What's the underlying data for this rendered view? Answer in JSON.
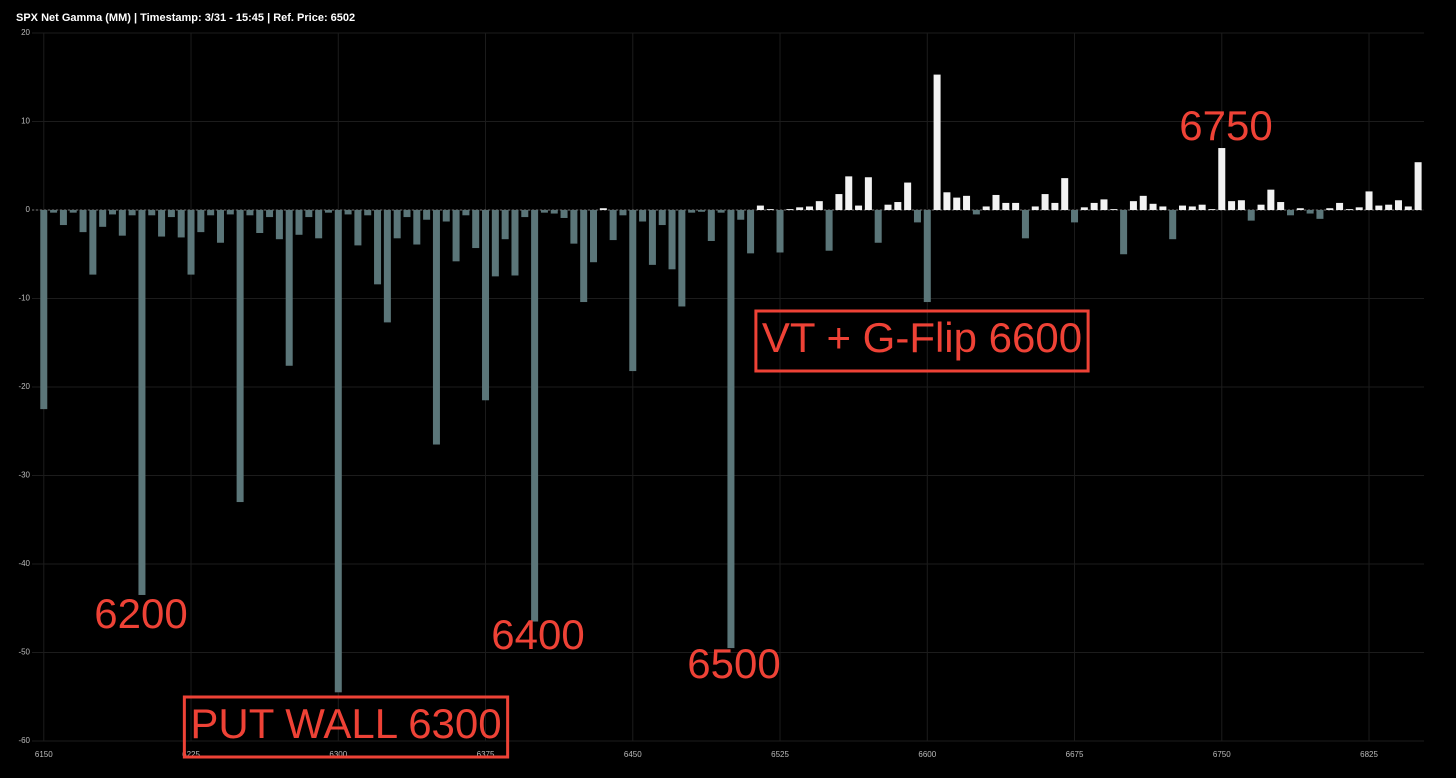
{
  "chart_data": {
    "type": "bar",
    "title": "SPX Net Gamma (MM) | Timestamp: 3/31 - 15:45  | Ref. Price: 6502",
    "x": [
      6150,
      6155,
      6160,
      6165,
      6170,
      6175,
      6180,
      6185,
      6190,
      6195,
      6200,
      6205,
      6210,
      6215,
      6220,
      6225,
      6230,
      6235,
      6240,
      6245,
      6250,
      6255,
      6260,
      6265,
      6270,
      6275,
      6280,
      6285,
      6290,
      6295,
      6300,
      6305,
      6310,
      6315,
      6320,
      6325,
      6330,
      6335,
      6340,
      6345,
      6350,
      6355,
      6360,
      6365,
      6370,
      6375,
      6380,
      6385,
      6390,
      6395,
      6400,
      6405,
      6410,
      6415,
      6420,
      6425,
      6430,
      6435,
      6440,
      6445,
      6450,
      6455,
      6460,
      6465,
      6470,
      6475,
      6480,
      6485,
      6490,
      6495,
      6500,
      6505,
      6510,
      6515,
      6520,
      6525,
      6530,
      6535,
      6540,
      6545,
      6550,
      6555,
      6560,
      6565,
      6570,
      6575,
      6580,
      6585,
      6590,
      6595,
      6600,
      6605,
      6610,
      6615,
      6620,
      6625,
      6630,
      6635,
      6640,
      6645,
      6650,
      6655,
      6660,
      6665,
      6670,
      6675,
      6680,
      6685,
      6690,
      6695,
      6700,
      6705,
      6710,
      6715,
      6720,
      6725,
      6730,
      6735,
      6740,
      6745,
      6750,
      6755,
      6760,
      6765,
      6770,
      6775,
      6780,
      6785,
      6790,
      6795,
      6800,
      6805,
      6810,
      6815,
      6820,
      6825,
      6830,
      6835,
      6840,
      6845,
      6850
    ],
    "values": [
      -22.5,
      -0.3,
      -1.7,
      -0.3,
      -2.5,
      -7.3,
      -1.9,
      -0.5,
      -2.9,
      -0.6,
      -43.5,
      -0.6,
      -3.0,
      -0.8,
      -3.1,
      -7.3,
      -2.5,
      -0.6,
      -3.7,
      -0.5,
      -33,
      -0.6,
      -2.6,
      -0.8,
      -3.3,
      -17.6,
      -2.8,
      -0.8,
      -3.2,
      -0.3,
      -54.5,
      -0.5,
      -4.0,
      -0.6,
      -8.4,
      -12.7,
      -3.2,
      -0.8,
      -3.9,
      -1.1,
      -26.5,
      -1.3,
      -5.8,
      -0.6,
      -4.3,
      -21.5,
      -7.5,
      -3.3,
      -7.4,
      -0.8,
      -46.5,
      -0.3,
      -0.4,
      -0.9,
      -3.8,
      -10.4,
      -5.9,
      0.2,
      -3.4,
      -0.6,
      -18.2,
      -1.3,
      -6.2,
      -1.7,
      -6.7,
      -10.9,
      -0.3,
      -0.2,
      -3.5,
      -0.3,
      -49.5,
      -1.1,
      -4.9,
      0.5,
      0.1,
      -4.8,
      0.1,
      0.3,
      0.4,
      1.0,
      -4.6,
      1.8,
      3.8,
      0.5,
      3.7,
      -3.7,
      0.6,
      0.9,
      3.1,
      -1.4,
      -10.4,
      15.3,
      2.0,
      1.4,
      1.6,
      -0.5,
      0.4,
      1.7,
      0.8,
      0.8,
      -3.2,
      0.4,
      1.8,
      0.8,
      3.6,
      -1.4,
      0.3,
      0.8,
      1.2,
      0.1,
      -5.0,
      1.0,
      1.6,
      0.7,
      0.4,
      -3.3,
      0.5,
      0.4,
      0.6,
      0.1,
      7.0,
      1.0,
      1.1,
      -1.2,
      0.6,
      2.3,
      0.9,
      -0.6,
      0.2,
      -0.4,
      -1.0,
      0.2,
      0.8,
      0.1,
      0.3,
      2.1,
      0.5,
      0.6,
      1.1,
      0.4,
      5.4
    ],
    "positive_color": "#f2f2f2",
    "negative_color": "#5b7679",
    "xlim": [
      6144,
      6853
    ],
    "xticks": [
      6150,
      6225,
      6300,
      6375,
      6450,
      6525,
      6600,
      6675,
      6750,
      6825
    ],
    "ylim": [
      -60,
      20
    ],
    "yticks": [
      -60,
      -50,
      -40,
      -30,
      -20,
      -10,
      0,
      10,
      20
    ],
    "grid": true,
    "annotations": [
      {
        "text": "6200",
        "boxed": false
      },
      {
        "text": "PUT WALL 6300",
        "boxed": true
      },
      {
        "text": "6400",
        "boxed": false
      },
      {
        "text": "6500",
        "boxed": false
      },
      {
        "text": "VT + G-Flip 6600",
        "boxed": true
      },
      {
        "text": "6750",
        "boxed": false
      }
    ],
    "annotation_color": "#ee4236"
  }
}
